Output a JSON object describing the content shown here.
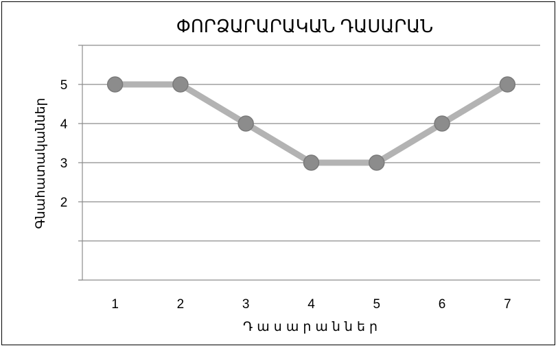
{
  "chart_data": {
    "type": "line",
    "title": "ՓՈՐՁԱՐԱՐԱԿԱՆ ԴԱՍԱՐԱՆ",
    "xlabel": "Դասարաններ",
    "ylabel": "Գնահատականներ",
    "categories": [
      "1",
      "2",
      "3",
      "4",
      "5",
      "6",
      "7"
    ],
    "series": [
      {
        "values": [
          5,
          5,
          4,
          3,
          3,
          4,
          5
        ]
      }
    ],
    "y_ticks": [
      2,
      3,
      4,
      5
    ],
    "ylim": [
      0,
      6
    ],
    "grid": true,
    "legend": "none",
    "colors": {
      "line": "#b3b3b3",
      "marker_fill": "#8c8c8c",
      "marker_stroke": "#7a7a7a",
      "grid": "#8c8c8c",
      "axis": "#8c8c8c"
    }
  }
}
